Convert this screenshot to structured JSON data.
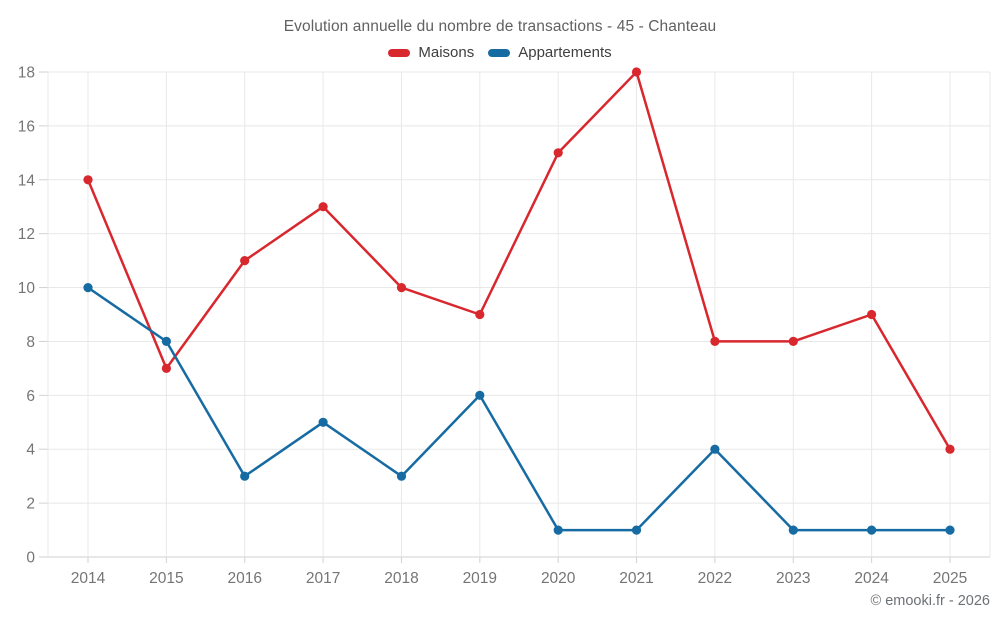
{
  "title": "Evolution annuelle du nombre de transactions - 45 - Chanteau",
  "copyright": "© emooki.fr - 2026",
  "colors": {
    "maisons": "#d9272e",
    "appartements": "#176ba3",
    "grid": "#e8e8e8",
    "axis_line": "#d2d2d2",
    "tick_label": "#757575",
    "title_text": "#616161",
    "legend_text": "#3f3f3f",
    "copyright_text": "#6d7175",
    "background": "#ffffff"
  },
  "chart_data": {
    "type": "line",
    "title": "Evolution annuelle du nombre de transactions - 45 - Chanteau",
    "categories": [
      "2014",
      "2015",
      "2016",
      "2017",
      "2018",
      "2019",
      "2020",
      "2021",
      "2022",
      "2023",
      "2024",
      "2025"
    ],
    "series": [
      {
        "name": "Maisons",
        "color": "#d9272e",
        "values": [
          14,
          7,
          11,
          13,
          10,
          9,
          15,
          18,
          8,
          8,
          9,
          4
        ]
      },
      {
        "name": "Appartements",
        "color": "#176ba3",
        "values": [
          10,
          8,
          3,
          5,
          3,
          6,
          1,
          1,
          4,
          1,
          1,
          1
        ]
      }
    ],
    "xlabel": "",
    "ylabel": "",
    "ylim": [
      0,
      18
    ],
    "ytick_step": 2,
    "grid": true,
    "legend_position": "top"
  }
}
